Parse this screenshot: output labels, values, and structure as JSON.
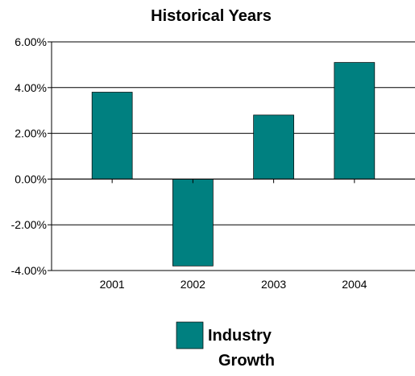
{
  "chart_data": {
    "type": "bar",
    "title": "Historical Years",
    "categories": [
      "2001",
      "2002",
      "2003",
      "2004"
    ],
    "series": [
      {
        "name": "Industry Growth",
        "values": [
          0.038,
          -0.038,
          0.028,
          0.051
        ],
        "color": "#008080"
      }
    ],
    "ylim": [
      -0.04,
      0.06
    ],
    "yticks": [
      -0.04,
      -0.02,
      0.0,
      0.02,
      0.04,
      0.06
    ],
    "ytick_labels": [
      "-4.00%",
      "-2.00%",
      "0.00%",
      "2.00%",
      "4.00%",
      "6.00%"
    ],
    "xlabel": "",
    "ylabel": "",
    "grid": true,
    "legend": {
      "position": "bottom",
      "label_lines": [
        "Industry",
        "Growth"
      ]
    }
  }
}
